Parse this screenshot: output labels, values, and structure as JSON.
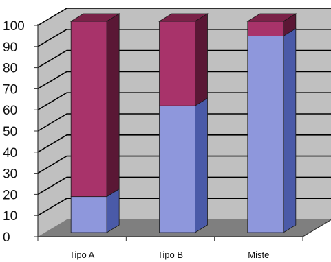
{
  "chart_data": {
    "type": "bar",
    "stacked": true,
    "three_d": true,
    "title": "",
    "xlabel": "",
    "ylabel": "",
    "categories": [
      "Tipo A",
      "Tipo B",
      "Miste"
    ],
    "series": [
      {
        "values": [
          17,
          60,
          93
        ],
        "color": "#8e97dc"
      },
      {
        "values": [
          83,
          40,
          7
        ],
        "color": "#a8336a"
      }
    ],
    "ylim": [
      0,
      100
    ],
    "yticks": [
      "0",
      "10",
      "20",
      "30",
      "40",
      "50",
      "60",
      "70",
      "80",
      "90",
      "100"
    ],
    "grid": true,
    "legend": "none"
  },
  "colors": {
    "wall": "#c0c0c0",
    "floor": "#7f7f7f",
    "gridline": "#000000",
    "series1_side": "#4a5aa8",
    "series2_side": "#5a1735",
    "series2_top": "#7a2248"
  }
}
